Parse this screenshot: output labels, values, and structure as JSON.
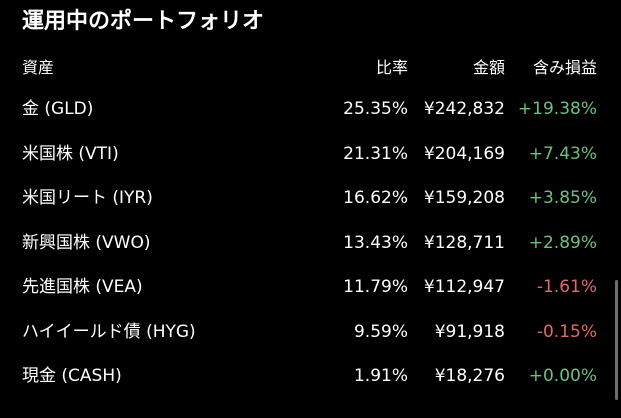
{
  "title": "運用中のポートフォリオ",
  "columns": {
    "asset": "資産",
    "ratio": "比率",
    "amount": "金額",
    "pl": "含み損益"
  },
  "holdings": [
    {
      "name": "金 (GLD)",
      "ratio": "25.35%",
      "amount": "¥242,832",
      "pl": "+19.38%",
      "direction": "pos"
    },
    {
      "name": "米国株 (VTI)",
      "ratio": "21.31%",
      "amount": "¥204,169",
      "pl": "+7.43%",
      "direction": "pos"
    },
    {
      "name": "米国リート (IYR)",
      "ratio": "16.62%",
      "amount": "¥159,208",
      "pl": "+3.85%",
      "direction": "pos"
    },
    {
      "name": "新興国株 (VWO)",
      "ratio": "13.43%",
      "amount": "¥128,711",
      "pl": "+2.89%",
      "direction": "pos"
    },
    {
      "name": "先進国株 (VEA)",
      "ratio": "11.79%",
      "amount": "¥112,947",
      "pl": "-1.61%",
      "direction": "neg"
    },
    {
      "name": "ハイイールド債 (HYG)",
      "ratio": "9.59%",
      "amount": "¥91,918",
      "pl": "-0.15%",
      "direction": "neg"
    },
    {
      "name": "現金 (CASH)",
      "ratio": "1.91%",
      "amount": "¥18,276",
      "pl": "+0.00%",
      "direction": "pos"
    }
  ],
  "colors": {
    "background": "#000000",
    "text": "#ffffff",
    "gain": "#6cc17d",
    "loss": "#e06a66"
  }
}
